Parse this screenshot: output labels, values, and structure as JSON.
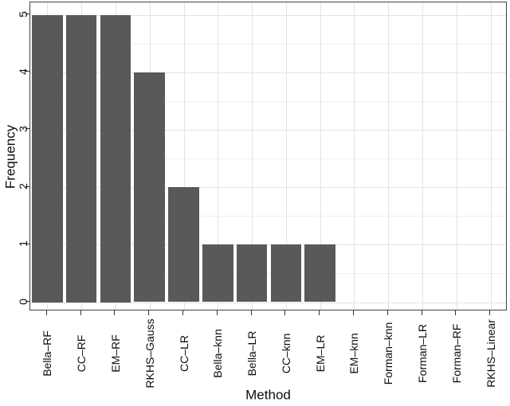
{
  "chart_data": {
    "type": "bar",
    "title": "",
    "xlabel": "Method",
    "ylabel": "Frequency",
    "categories": [
      "Bella–RF",
      "CC–RF",
      "EM–RF",
      "RKHS–Gauss",
      "CC–LR",
      "Bella–knn",
      "Bella–LR",
      "CC–knn",
      "EM–LR",
      "EM–knn",
      "Forman–knn",
      "Forman–LR",
      "Forman–RF",
      "RKHS–Linear"
    ],
    "values": [
      5,
      5,
      5,
      4,
      2,
      1,
      1,
      1,
      1,
      0,
      0,
      0,
      0,
      0
    ],
    "ylim": [
      0,
      5
    ],
    "yticks": [
      0,
      1,
      2,
      3,
      4,
      5
    ],
    "legend": "none",
    "grid": "horizontal major at integers and minor at halves, vertical major at each category",
    "x_tick_label_rotation_deg": -90,
    "y_tick_label_rotation_deg": -90,
    "colors": {
      "bar_fill": "#595959",
      "panel_border": "#404040",
      "major_grid": "#e3e3e3",
      "minor_grid": "#f0f0f0",
      "tick_mark": "#333333",
      "text": "#0d0d0d",
      "background": "#ffffff"
    }
  }
}
